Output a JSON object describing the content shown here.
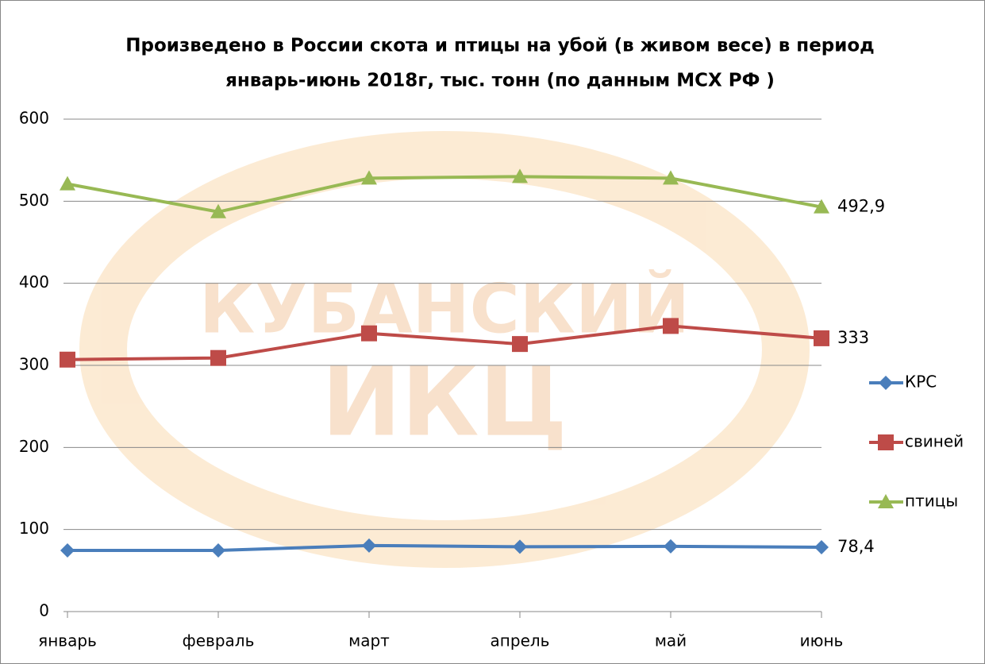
{
  "chart_data": {
    "type": "line",
    "title": [
      "Произведено в России скота и птицы на убой (в живом весе) в период",
      "январь-июнь 2018г, тыс. тонн (по данным МСХ РФ )"
    ],
    "watermark": [
      "КУБАНСКИЙ",
      "ИКЦ"
    ],
    "categories": [
      "январь",
      "февраль",
      "март",
      "апрель",
      "май",
      "июнь"
    ],
    "series": [
      {
        "name": "КРС",
        "color": "#4a7ebb",
        "marker": "diamond",
        "values": [
          74.5,
          74.5,
          80.5,
          79,
          79.5,
          78.4
        ],
        "value_labels": [
          null,
          null,
          null,
          null,
          null,
          "78,4"
        ]
      },
      {
        "name": "свиней",
        "color": "#be4b48",
        "marker": "square",
        "values": [
          307,
          309,
          339,
          326,
          348,
          333
        ],
        "value_labels": [
          null,
          null,
          null,
          null,
          null,
          "333"
        ]
      },
      {
        "name": "птицы",
        "color": "#98b954",
        "marker": "triangle",
        "values": [
          521,
          487,
          528,
          530,
          528,
          492.9
        ],
        "value_labels": [
          null,
          null,
          null,
          null,
          null,
          "492,9"
        ]
      }
    ],
    "ylim": [
      0,
      600
    ],
    "yticks": [
      0,
      100,
      200,
      300,
      400,
      500,
      600
    ],
    "grid": true,
    "legend": "right"
  }
}
